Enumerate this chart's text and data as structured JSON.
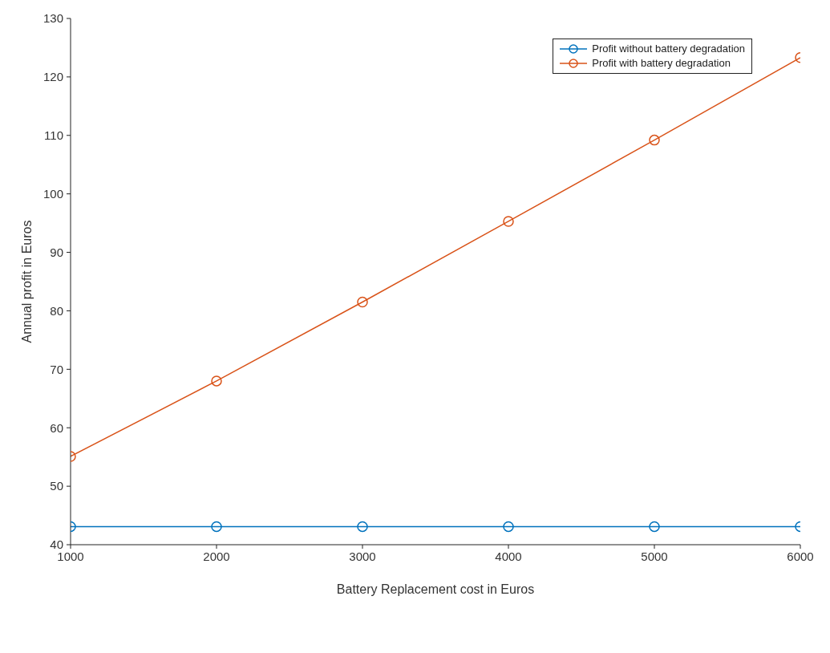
{
  "chart_data": {
    "type": "line",
    "xlabel": "Battery Replacement cost in Euros",
    "ylabel": "Annual profit in Euros",
    "x": [
      1000,
      2000,
      3000,
      4000,
      5000,
      6000
    ],
    "series": [
      {
        "name": "Profit without battery degradation",
        "color": "#0072bd",
        "values": [
          43.1,
          43.1,
          43.1,
          43.1,
          43.1,
          43.1
        ]
      },
      {
        "name": "Profit with battery degradation",
        "color": "#d95319",
        "values": [
          55.1,
          68.0,
          81.5,
          95.3,
          109.2,
          123.3
        ]
      }
    ],
    "xlim": [
      1000,
      6000
    ],
    "xticks": [
      1000,
      2000,
      3000,
      4000,
      5000,
      6000
    ],
    "ylim": [
      40,
      130
    ],
    "yticks": [
      40,
      50,
      60,
      70,
      80,
      90,
      100,
      110,
      120,
      130
    ],
    "grid": false,
    "legend": "top right",
    "marker": "circle",
    "line_style": "solid"
  }
}
